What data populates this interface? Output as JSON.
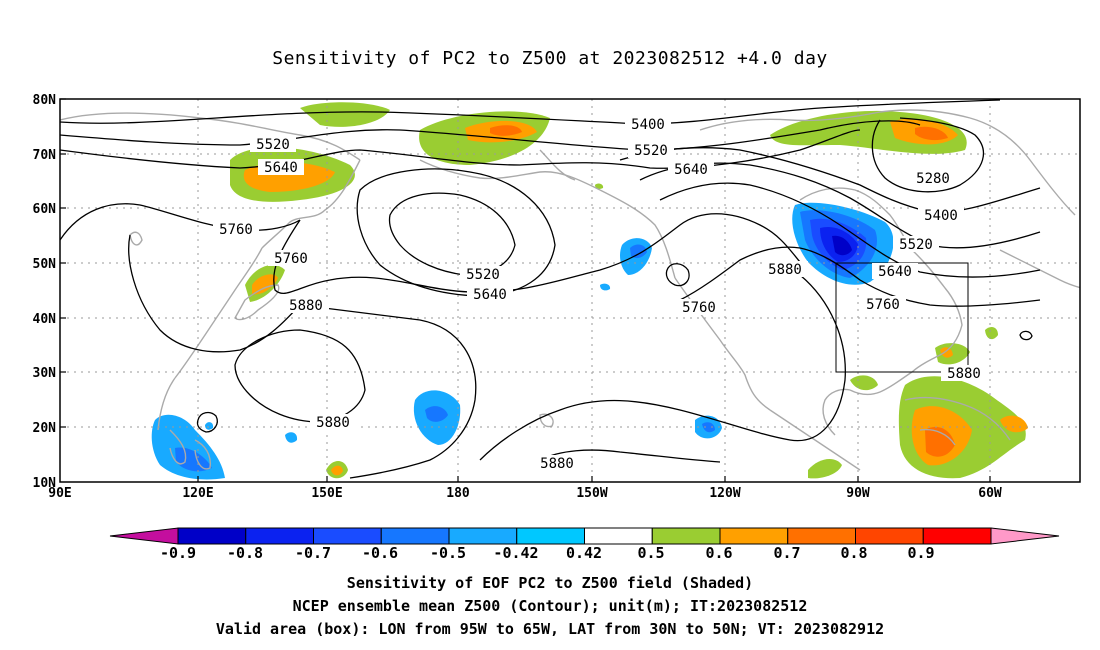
{
  "title": "Sensitivity of PC2 to Z500 at 2023082512 +4.0 day",
  "lat_labels": [
    "80N",
    "70N",
    "60N",
    "50N",
    "40N",
    "30N",
    "20N",
    "10N"
  ],
  "lon_labels": [
    "90E",
    "120E",
    "150E",
    "180",
    "150W",
    "120W",
    "90W",
    "60W"
  ],
  "contour_labels": [
    "5400",
    "5520",
    "5640",
    "5280",
    "5400",
    "5520",
    "5640",
    "5760",
    "5520",
    "5640",
    "5760",
    "5880",
    "5760",
    "5880",
    "5880",
    "5880",
    "5880"
  ],
  "colorbar": {
    "labels": [
      "-0.9",
      "-0.8",
      "-0.7",
      "-0.6",
      "-0.5",
      "-0.42",
      "0.42",
      "0.5",
      "0.6",
      "0.7",
      "0.8",
      "0.9"
    ],
    "colors": [
      "#c40e9e",
      "#0000c8",
      "#0b22f0",
      "#1a4cff",
      "#1677ff",
      "#18aaff",
      "#00c8ff",
      "#ffffff",
      "#9acd32",
      "#ffa000",
      "#ff7000",
      "#ff4500",
      "#ff0000",
      "#ff99c8"
    ]
  },
  "box": {
    "lon_from": "95W",
    "lon_to": "65W",
    "lat_from": "30N",
    "lat_to": "50N"
  },
  "captions": [
    "Sensitivity of EOF PC2 to Z500 field (Shaded)",
    "NCEP ensemble mean Z500 (Contour); unit(m); IT:2023082512",
    "Valid area (box): LON from 95W to 65W, LAT from 30N to 50N; VT: 2023082912"
  ]
}
